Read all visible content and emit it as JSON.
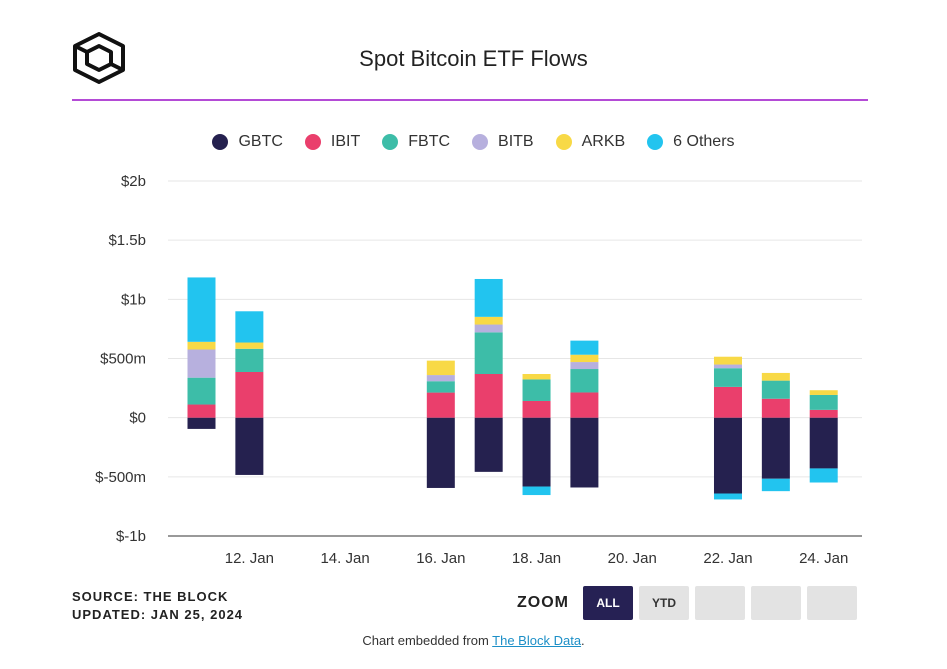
{
  "header": {
    "title": "Spot Bitcoin ETF Flows",
    "logo_icon": "the-block-cube-logo-icon"
  },
  "colors": {
    "GBTC": "#25214f",
    "IBIT": "#ea3f6c",
    "FBTC": "#3dbda8",
    "BITB": "#b7b0de",
    "ARKB": "#f8d946",
    "6 Others": "#22c4ef",
    "accent_rule": "#b44bd6"
  },
  "chart_data": {
    "type": "bar",
    "stacked": true,
    "title": "Spot Bitcoin ETF Flows",
    "xlabel": "",
    "ylabel": "",
    "ylim": [
      -1000,
      2000
    ],
    "y_ticks": [
      {
        "value": 2000,
        "label": "$2b"
      },
      {
        "value": 1500,
        "label": "$1.5b"
      },
      {
        "value": 1000,
        "label": "$1b"
      },
      {
        "value": 500,
        "label": "$500m"
      },
      {
        "value": 0,
        "label": "$0"
      },
      {
        "value": -500,
        "label": "$-500m"
      },
      {
        "value": -1000,
        "label": "$-1b"
      }
    ],
    "x_range": [
      10.3,
      24.8
    ],
    "x_ticks": [
      {
        "value": 12,
        "label": "12. Jan"
      },
      {
        "value": 14,
        "label": "14. Jan"
      },
      {
        "value": 16,
        "label": "16. Jan"
      },
      {
        "value": 18,
        "label": "18. Jan"
      },
      {
        "value": 20,
        "label": "20. Jan"
      },
      {
        "value": 22,
        "label": "22. Jan"
      },
      {
        "value": 24,
        "label": "24. Jan"
      }
    ],
    "days": [
      11,
      12,
      16,
      17,
      18,
      19,
      22,
      23,
      24
    ],
    "series": [
      {
        "name": "GBTC",
        "values": [
          -95,
          -484,
          -594,
          -458,
          -582,
          -590,
          -641,
          -516,
          -429
        ]
      },
      {
        "name": "IBIT",
        "values": [
          111,
          386,
          212,
          369,
          141,
          213,
          260,
          160,
          66
        ]
      },
      {
        "name": "FBTC",
        "values": [
          227,
          196,
          96,
          352,
          182,
          198,
          158,
          153,
          126
        ]
      },
      {
        "name": "BITB",
        "values": [
          238,
          0,
          52,
          66,
          0,
          59,
          31,
          0,
          0
        ]
      },
      {
        "name": "ARKB",
        "values": [
          65,
          53,
          122,
          65,
          46,
          62,
          66,
          65,
          40
        ]
      },
      {
        "name": "6 Others",
        "values": [
          544,
          264,
          0,
          320,
          -72,
          119,
          -50,
          -105,
          -119
        ]
      }
    ]
  },
  "legend": [
    "GBTC",
    "IBIT",
    "FBTC",
    "BITB",
    "ARKB",
    "6 Others"
  ],
  "source": {
    "line1": "SOURCE: THE BLOCK",
    "line2": "UPDATED: JAN 25, 2024"
  },
  "zoom": {
    "label": "ZOOM",
    "buttons": [
      "ALL",
      "YTD"
    ]
  },
  "footer": {
    "text": "Chart embedded from ",
    "link": "The Block Data",
    "suffix": "."
  }
}
